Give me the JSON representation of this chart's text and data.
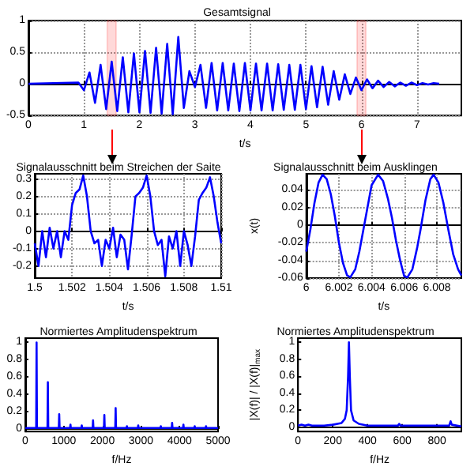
{
  "chart_data": [
    {
      "type": "line",
      "title": "Gesamtsignal",
      "xlabel": "t/s",
      "xlim": [
        0,
        7.8
      ],
      "xticks": [
        0,
        1,
        2,
        3,
        4,
        5,
        6,
        7
      ],
      "ylim": [
        -0.5,
        1
      ],
      "yticks": [
        -0.5,
        0,
        0.5,
        1
      ],
      "grid": true,
      "bands": [
        {
          "axis": "x",
          "from": 1.42,
          "to": 1.58,
          "color": "#ff0000"
        },
        {
          "axis": "x",
          "from": 5.92,
          "to": 6.08,
          "color": "#ff0000"
        }
      ],
      "series": [
        {
          "color": "#0000ff",
          "x": [
            0,
            0.9,
            1.0,
            1.1,
            1.2,
            1.3,
            1.4,
            1.5,
            1.6,
            1.7,
            1.8,
            1.9,
            2.0,
            2.1,
            2.2,
            2.3,
            2.4,
            2.5,
            2.6,
            2.7,
            2.8,
            2.9,
            3.0,
            3.1,
            3.2,
            3.3,
            3.4,
            3.5,
            3.6,
            3.7,
            3.8,
            3.9,
            4.0,
            4.1,
            4.2,
            4.3,
            4.4,
            4.5,
            4.6,
            4.7,
            4.8,
            4.9,
            5.0,
            5.1,
            5.2,
            5.3,
            5.4,
            5.5,
            5.6,
            5.7,
            5.8,
            5.9,
            6.0,
            6.1,
            6.2,
            6.3,
            6.4,
            6.5,
            6.6,
            6.7,
            6.8,
            6.9,
            7.0,
            7.1,
            7.2,
            7.3,
            7.4
          ],
          "values": [
            0,
            0.02,
            -0.1,
            0.18,
            -0.3,
            0.3,
            -0.4,
            0.35,
            -0.43,
            0.42,
            -0.45,
            0.48,
            -0.45,
            0.52,
            -0.46,
            0.57,
            -0.47,
            0.63,
            -0.48,
            0.74,
            -0.38,
            0.2,
            -0.05,
            0.3,
            -0.38,
            0.33,
            -0.42,
            0.33,
            -0.42,
            0.32,
            -0.43,
            0.33,
            -0.42,
            0.32,
            -0.42,
            0.32,
            -0.42,
            0.31,
            -0.41,
            0.3,
            -0.41,
            0.3,
            -0.4,
            0.28,
            -0.37,
            0.27,
            -0.33,
            0.2,
            -0.25,
            0.15,
            -0.16,
            0.1,
            -0.1,
            0.07,
            -0.07,
            0.05,
            -0.05,
            0.03,
            -0.04,
            0.02,
            -0.03,
            0.02,
            -0.02,
            0.01,
            -0.01,
            0.01,
            0
          ]
        }
      ]
    },
    {
      "type": "line",
      "title": "Signalausschnitt beim Streichen der Saite",
      "xlabel": "t/s",
      "xlim": [
        1.5,
        1.51
      ],
      "xticks": [
        1.5,
        1.502,
        1.504,
        1.506,
        1.508,
        1.51
      ],
      "ylim": [
        -0.27,
        0.33
      ],
      "yticks": [
        -0.2,
        -0.1,
        0,
        0.1,
        0.2,
        0.3
      ],
      "grid": true,
      "series": [
        {
          "color": "#0000ff",
          "x": [
            1.5,
            1.5002,
            1.5004,
            1.5006,
            1.5008,
            1.501,
            1.5012,
            1.5014,
            1.5016,
            1.5018,
            1.502,
            1.5022,
            1.5024,
            1.5026,
            1.5028,
            1.503,
            1.5032,
            1.5034,
            1.5036,
            1.5038,
            1.504,
            1.5042,
            1.5044,
            1.5046,
            1.5048,
            1.505,
            1.5052,
            1.5054,
            1.5056,
            1.5058,
            1.506,
            1.5062,
            1.5064,
            1.5066,
            1.5068,
            1.507,
            1.5072,
            1.5074,
            1.5076,
            1.5078,
            1.508,
            1.5082,
            1.5084,
            1.5086,
            1.5088,
            1.509,
            1.5092,
            1.5094,
            1.5096,
            1.5098,
            1.51
          ],
          "values": [
            -0.07,
            -0.2,
            0,
            -0.15,
            0.02,
            -0.1,
            0,
            -0.15,
            0,
            -0.05,
            0.15,
            0.22,
            0.24,
            0.32,
            0.2,
            0,
            -0.07,
            -0.05,
            -0.2,
            -0.05,
            -0.1,
            0.02,
            -0.15,
            -0.02,
            -0.05,
            -0.22,
            -0.02,
            0.2,
            0.22,
            0.25,
            0.32,
            0.2,
            0,
            -0.08,
            -0.05,
            -0.26,
            -0.03,
            -0.1,
            0,
            -0.2,
            0,
            -0.08,
            -0.2,
            -0.03,
            0.18,
            0.22,
            0.25,
            0.31,
            0.2,
            0.05,
            -0.07
          ]
        }
      ]
    },
    {
      "type": "line",
      "title": "Signalausschnitt beim Ausklingen",
      "xlabel": "t/s",
      "ylabel": "x(t)",
      "xlim": [
        6,
        6.0095
      ],
      "xticks": [
        6,
        6.002,
        6.004,
        6.006,
        6.008
      ],
      "ylim": [
        -0.06,
        0.058
      ],
      "yticks": [
        -0.06,
        -0.04,
        -0.02,
        0,
        0.02,
        0.04
      ],
      "grid": true,
      "series": [
        {
          "color": "#0000ff",
          "x": [
            6,
            6.00025,
            6.0005,
            6.00075,
            6.001,
            6.00125,
            6.0015,
            6.00175,
            6.002,
            6.00225,
            6.0025,
            6.0027,
            6.003,
            6.00325,
            6.0035,
            6.00375,
            6.004,
            6.0044,
            6.0047,
            6.005,
            6.00525,
            6.0055,
            6.00575,
            6.006,
            6.0062,
            6.0065,
            6.0068,
            6.007,
            6.0073,
            6.0076,
            6.0078,
            6.0081,
            6.0084,
            6.0087,
            6.009,
            6.0093,
            6.0095
          ],
          "values": [
            -0.03,
            -0.005,
            0.025,
            0.048,
            0.057,
            0.052,
            0.035,
            0.01,
            -0.02,
            -0.043,
            -0.057,
            -0.059,
            -0.05,
            -0.03,
            -0.005,
            0.02,
            0.045,
            0.057,
            0.05,
            0.03,
            0.008,
            -0.018,
            -0.04,
            -0.058,
            -0.059,
            -0.05,
            -0.025,
            -0.005,
            0.028,
            0.052,
            0.057,
            0.048,
            0.025,
            -0.005,
            -0.033,
            -0.05,
            -0.057
          ]
        }
      ]
    },
    {
      "type": "line",
      "title": "Normiertes Amplitudenspektrum",
      "xlabel": "f/Hz",
      "xlim": [
        0,
        5000
      ],
      "xticks": [
        0,
        1000,
        2000,
        3000,
        4000,
        5000
      ],
      "ylim": [
        -0.03,
        1.05
      ],
      "yticks": [
        0,
        0.2,
        0.4,
        0.6,
        0.8,
        1
      ],
      "series": [
        {
          "color": "#0000ff",
          "x": [
            0,
            283,
            293,
            303,
            576,
            586,
            596,
            870,
            880,
            890,
            1162,
            1172,
            1182,
            1455,
            1465,
            1475,
            1748,
            1758,
            1768,
            2041,
            2051,
            2061,
            2334,
            2344,
            2354,
            2627,
            2637,
            2647,
            2920,
            2930,
            2940,
            3213,
            3223,
            3233,
            3506,
            3516,
            3526,
            3799,
            3809,
            3819,
            4092,
            4102,
            4112,
            4385,
            4395,
            4405,
            4678,
            4688,
            4698,
            5000
          ],
          "values": [
            0.01,
            0.01,
            1,
            0.01,
            0.01,
            0.54,
            0.01,
            0.01,
            0.17,
            0.01,
            0.01,
            0.05,
            0.01,
            0.01,
            0.04,
            0.01,
            0.01,
            0.1,
            0.01,
            0.01,
            0.16,
            0.01,
            0.01,
            0.24,
            0.01,
            0.01,
            0.03,
            0.01,
            0.01,
            0.04,
            0.01,
            0.01,
            0.02,
            0.01,
            0.01,
            0.03,
            0.01,
            0.01,
            0.07,
            0.01,
            0.01,
            0.05,
            0.01,
            0.01,
            0.03,
            0.01,
            0.01,
            0.03,
            0.01,
            0.01
          ]
        }
      ]
    },
    {
      "type": "line",
      "title": "Normiertes Amplitudenspektrum",
      "xlabel": "f/Hz",
      "ylabel": "|X(f)| / |X(f)|$_{max}$",
      "xlim": [
        0,
        940
      ],
      "xticks": [
        0,
        200,
        400,
        600,
        800
      ],
      "ylim": [
        -0.05,
        1.05
      ],
      "yticks": [
        0,
        0.2,
        0.4,
        0.6,
        0.8,
        1
      ],
      "series": [
        {
          "color": "#0000ff",
          "x": [
            0,
            20,
            40,
            60,
            80,
            100,
            150,
            200,
            250,
            270,
            280,
            288,
            293,
            298,
            305,
            320,
            350,
            400,
            500,
            575,
            582,
            590,
            700,
            800,
            870,
            878,
            885,
            940
          ],
          "values": [
            0.02,
            0.03,
            0.02,
            0.03,
            0.02,
            0.02,
            0.02,
            0.03,
            0.05,
            0.1,
            0.2,
            0.6,
            1,
            0.6,
            0.2,
            0.08,
            0.04,
            0.02,
            0.02,
            0.02,
            0.04,
            0.02,
            0.02,
            0.02,
            0.02,
            0.07,
            0.03,
            0.01
          ]
        }
      ]
    }
  ]
}
